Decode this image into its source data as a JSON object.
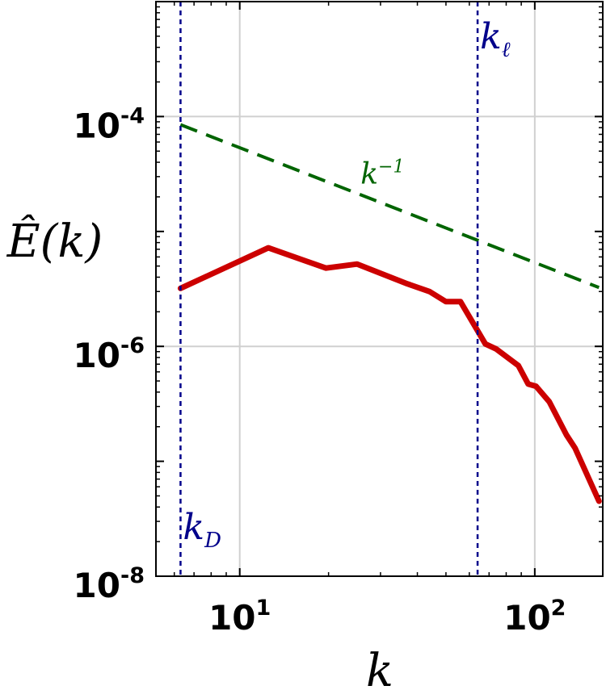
{
  "chart_data": {
    "type": "line",
    "title": "",
    "xlabel": "k",
    "ylabel": "Ê(k)",
    "x_scale": "log",
    "y_scale": "log",
    "xlim": [
      5.2,
      170
    ],
    "ylim": [
      1e-08,
      0.001
    ],
    "grid": true,
    "x_ticks": [
      {
        "value": 10,
        "base": "10",
        "exp": "1"
      },
      {
        "value": 100,
        "base": "10",
        "exp": "2"
      }
    ],
    "y_ticks": [
      {
        "value": 1e-08,
        "base": "10",
        "exp": "-8"
      },
      {
        "value": 1e-06,
        "base": "10",
        "exp": "-6"
      },
      {
        "value": 0.0001,
        "base": "10",
        "exp": "-4"
      }
    ],
    "series": [
      {
        "color": "#cc0000",
        "style": "solid",
        "x": [
          6.3,
          12.5,
          19.6,
          25,
          37,
          44,
          50,
          56,
          68,
          74,
          88,
          95,
          101,
          112,
          128,
          137,
          165
        ],
        "y": [
          3.2e-06,
          7.2e-06,
          4.8e-06,
          5.2e-06,
          3.5e-06,
          3e-06,
          2.45e-06,
          2.45e-06,
          1.05e-06,
          9.5e-07,
          6.8e-07,
          4.7e-07,
          4.5e-07,
          3.3e-07,
          1.7e-07,
          1.3e-07,
          4.5e-08
        ]
      },
      {
        "color": "#006400",
        "style": "dashed",
        "x": [
          6.3,
          165
        ],
        "y": [
          8.5e-05,
          3.25e-06
        ]
      }
    ],
    "vlines": [
      {
        "x": 6.3,
        "color": "#00008b",
        "label_base": "k",
        "label_sub": "D",
        "label_pos": "bottom"
      },
      {
        "x": 64,
        "color": "#00008b",
        "label_base": "k",
        "label_sub": "ℓ",
        "label_pos": "top"
      }
    ],
    "annotations": [
      {
        "x": 26,
        "y": 2.6e-05,
        "base": "k",
        "sup": "−1",
        "color": "#006400"
      }
    ]
  }
}
